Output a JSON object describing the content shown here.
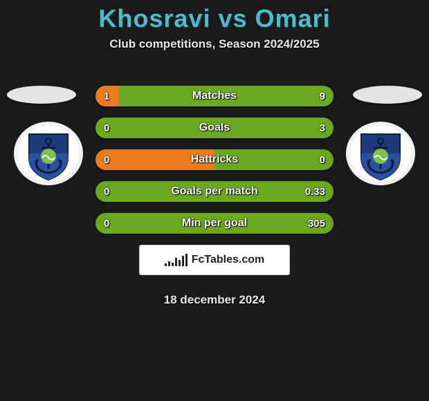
{
  "title": "Khosravi vs Omari",
  "subtitle": "Club competitions, Season 2024/2025",
  "date": "18 december 2024",
  "colors": {
    "left": "#e87c1e",
    "right": "#6aa820",
    "text": "#ffffff",
    "title": "#4fb8c9"
  },
  "bars": [
    {
      "label": "Matches",
      "left_value": "1",
      "right_value": "9",
      "left_ratio": 0.1
    },
    {
      "label": "Goals",
      "left_value": "0",
      "right_value": "3",
      "left_ratio": 0.0
    },
    {
      "label": "Hattricks",
      "left_value": "0",
      "right_value": "0",
      "left_ratio": 0.5
    },
    {
      "label": "Goals per match",
      "left_value": "0",
      "right_value": "0.33",
      "left_ratio": 0.0
    },
    {
      "label": "Min per goal",
      "left_value": "0",
      "right_value": "305",
      "left_ratio": 0.0
    }
  ],
  "logo": {
    "text_prefix": "Fc",
    "text_main": "Tables",
    "text_suffix": ".com"
  },
  "badge": {
    "ring1": "#f2f2f2",
    "ring2": "#ffffff",
    "shield_top": "#1f3b7a",
    "shield_bottom": "#2a4fa3",
    "anchor": "#0e1e40",
    "wave": "#7fc24a",
    "wave_accent": "#ffffff"
  },
  "logo_bars_heights": [
    4,
    7,
    5,
    12,
    9,
    15,
    18
  ]
}
